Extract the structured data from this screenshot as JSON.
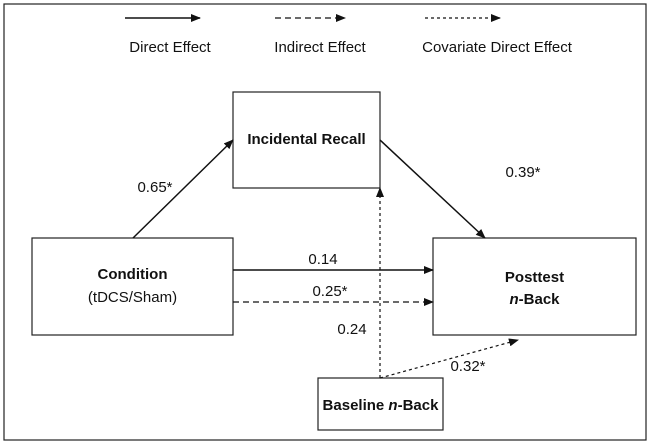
{
  "legend": [
    {
      "label": "Direct Effect",
      "style": "solid"
    },
    {
      "label": "Indirect Effect",
      "style": "dashed"
    },
    {
      "label": "Covariate Direct Effect",
      "style": "dotted"
    }
  ],
  "nodes": [
    {
      "id": "recall",
      "lines": [
        [
          "Incidental Recall"
        ]
      ]
    },
    {
      "id": "condition",
      "lines": [
        [
          "Condition"
        ],
        [
          "(tDCS/Sham)"
        ]
      ]
    },
    {
      "id": "posttest",
      "lines": [
        [
          "Posttest"
        ],
        [
          "n",
          "-Back"
        ]
      ]
    },
    {
      "id": "baseline",
      "lines": [
        [
          "Baseline ",
          "n",
          "-Back"
        ]
      ]
    }
  ],
  "edges": [
    {
      "from": "condition",
      "to": "recall",
      "label": "0.65*",
      "style": "solid"
    },
    {
      "from": "recall",
      "to": "posttest",
      "label": "0.39*",
      "style": "solid"
    },
    {
      "from": "condition",
      "to": "posttest",
      "label": "0.14",
      "style": "solid"
    },
    {
      "from": "condition",
      "to": "posttest",
      "label": "0.25*",
      "style": "dashed"
    },
    {
      "from": "baseline",
      "to": "recall",
      "label": "0.24",
      "style": "dotted"
    },
    {
      "from": "baseline",
      "to": "posttest",
      "label": "0.32*",
      "style": "dotted"
    }
  ]
}
